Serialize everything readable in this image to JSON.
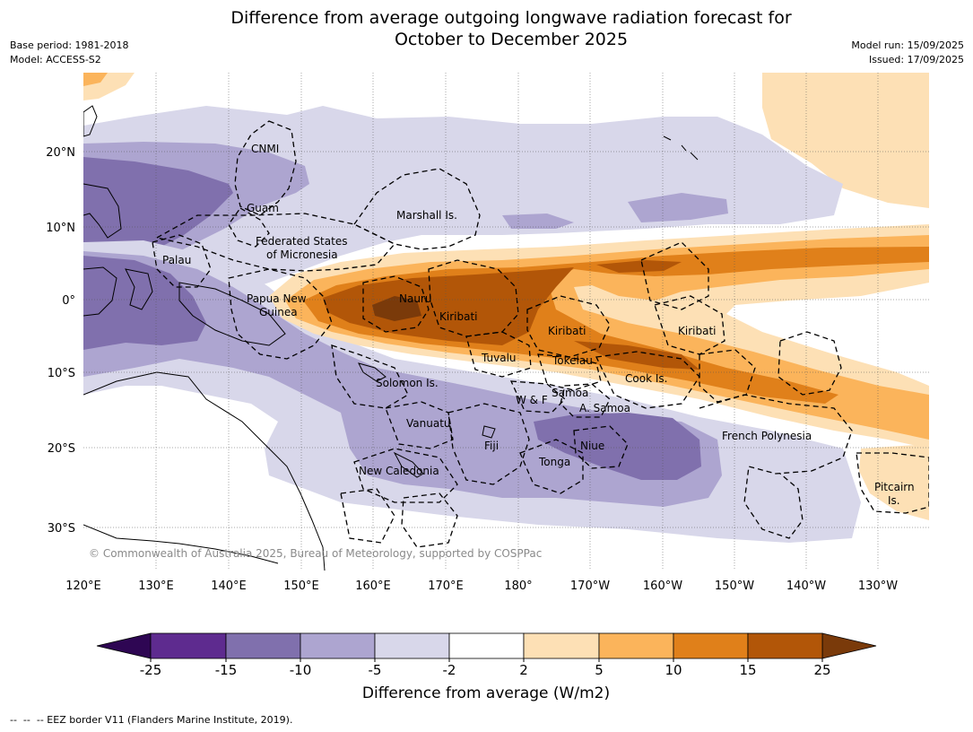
{
  "header": {
    "title_line1": "Difference from average outgoing longwave radiation forecast for",
    "title_line2": "October to December 2025",
    "base_period": "Base period: 1981-2018",
    "model": "Model: ACCESS-S2",
    "model_run": "Model run: 15/09/2025",
    "issued": "Issued: 17/09/2025"
  },
  "map": {
    "lon_labels": [
      "120°E",
      "130°E",
      "140°E",
      "150°E",
      "160°E",
      "170°E",
      "180°",
      "170°W",
      "160°W",
      "150°W",
      "140°W",
      "130°W"
    ],
    "lat_labels": [
      "20°N",
      "10°N",
      "0°",
      "10°S",
      "20°S",
      "30°S"
    ],
    "places": {
      "cnmi": "CNMI",
      "guam": "Guam",
      "marshall": "Marshall Is.",
      "fsm_1": "Federated States",
      "fsm_2": "of Micronesia",
      "palau": "Palau",
      "png_1": "Papua New",
      "png_2": "Guinea",
      "nauru": "Nauru",
      "kiribati_w": "Kiribati",
      "kiribati_c": "Kiribati",
      "kiribati_e": "Kiribati",
      "tuvalu": "Tuvalu",
      "tokelau": "Tokelau",
      "cook": "Cook Is.",
      "solomon": "Solomon Is.",
      "wf": "W & F",
      "samoa": "Samoa",
      "asamoa": "A. Samoa",
      "vanuatu": "Vanuatu",
      "fiji": "Fiji",
      "niue": "Niue",
      "tonga": "Tonga",
      "newcal": "New Caledonia",
      "frpoly": "French Polynesia",
      "pitcairn_1": "Pitcairn",
      "pitcairn_2": "Is."
    },
    "copyright": "© Commonwealth of Australia 2025, Bureau of Meteorology, supported by COSPPac"
  },
  "colorbar": {
    "ticks": [
      "-25",
      "-15",
      "-10",
      "-5",
      "-2",
      "2",
      "5",
      "10",
      "15",
      "25"
    ],
    "colors": [
      "#5e2b8f",
      "#8070ad",
      "#ada5d0",
      "#d8d7ea",
      "#ffffff",
      "#fde0b5",
      "#fbb45b",
      "#e0801a",
      "#b25608"
    ],
    "low_color": "#2e0653",
    "high_color": "#7a3a0a",
    "label": "Difference from average (W/m2)"
  },
  "footnote": "--  --  -- EEZ border V11 (Flanders Marine Institute, 2019)."
}
